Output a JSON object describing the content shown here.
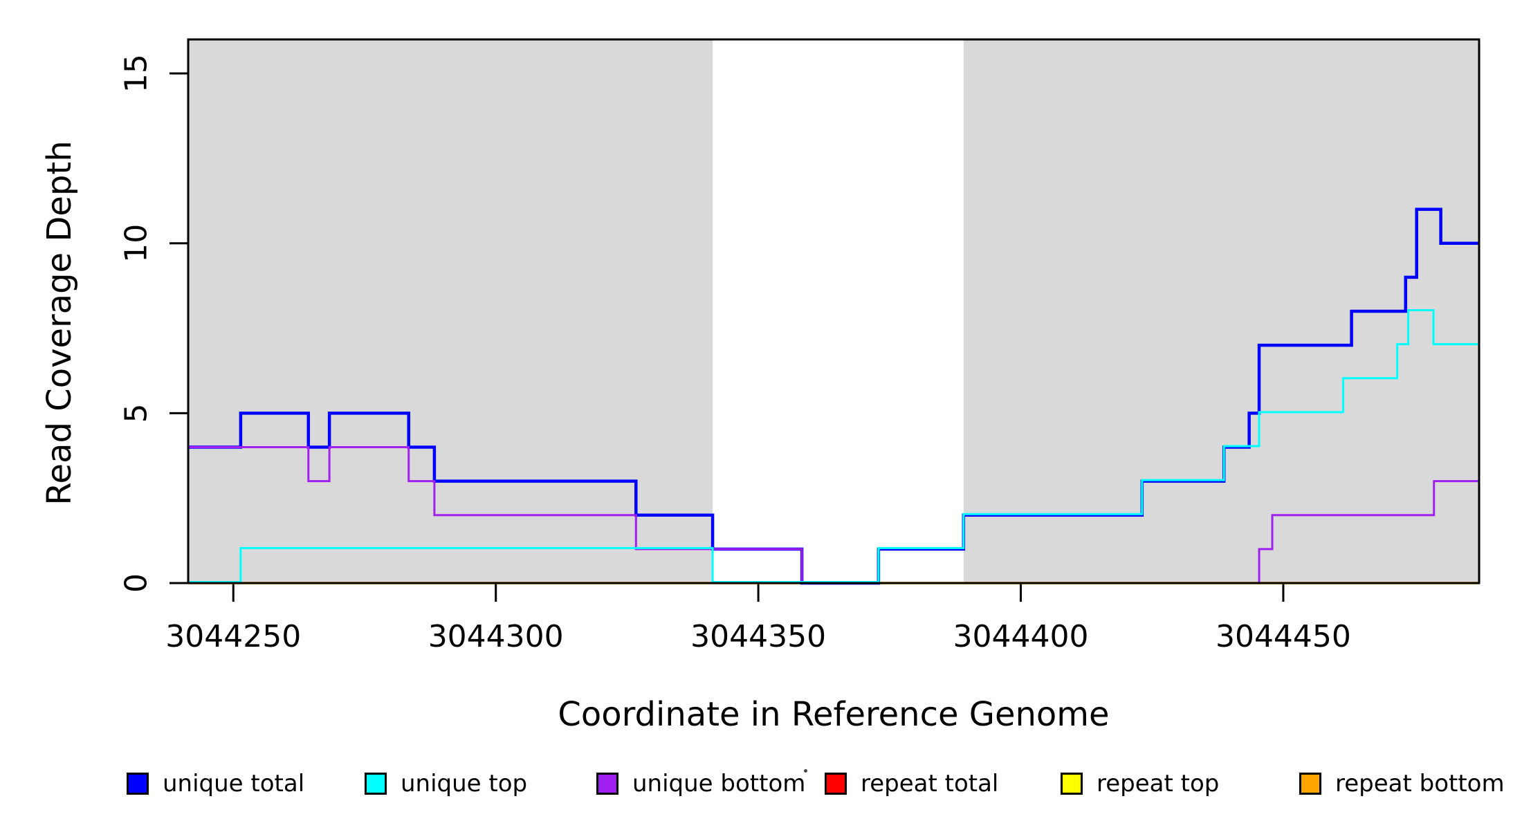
{
  "chart_data": {
    "type": "line",
    "subtype": "step",
    "title": "",
    "xlabel": "Coordinate in Reference Genome",
    "ylabel": "Read Coverage Depth",
    "xlim": [
      3044241.4,
      3044487.3
    ],
    "ylim": [
      0,
      16
    ],
    "grid": false,
    "x_tick_values": [
      3044250,
      3044300,
      3044350,
      3044400,
      3044450
    ],
    "x_tick_labels": [
      "3044250",
      "3044300",
      "3044350",
      "3044400",
      "3044450"
    ],
    "y_tick_values": [
      0,
      5,
      10,
      15
    ],
    "y_tick_labels": [
      "0",
      "5",
      "10",
      "15"
    ],
    "shaded_regions": [
      {
        "x0": 3044241.4,
        "x1": 3044341.3,
        "color": "#d9d9d9"
      },
      {
        "x0": 3044389.1,
        "x1": 3044487.3,
        "color": "#d9d9d9"
      }
    ],
    "series": [
      {
        "name": "repeat total",
        "color": "#ff0000",
        "width": 3,
        "dy": 0,
        "steps": [
          [
            3044241.4,
            0
          ]
        ]
      },
      {
        "name": "repeat top",
        "color": "#ffff00",
        "width": 3,
        "dy": 0,
        "steps": [
          [
            3044241.4,
            0
          ]
        ]
      },
      {
        "name": "repeat bottom",
        "color": "#ffa500",
        "width": 3.5,
        "dy": 0,
        "steps": [
          [
            3044241.4,
            0
          ]
        ]
      },
      {
        "name": "unique total",
        "color": "#0000ff",
        "width": 4.5,
        "dy": 0,
        "steps": [
          [
            3044241.4,
            4
          ],
          [
            3044251.4,
            5
          ],
          [
            3044264.3,
            4
          ],
          [
            3044268.3,
            5
          ],
          [
            3044283.4,
            4
          ],
          [
            3044288.3,
            3
          ],
          [
            3044326.7,
            2
          ],
          [
            3044341.3,
            1
          ],
          [
            3044358.3,
            0
          ],
          [
            3044372.9,
            1
          ],
          [
            3044389.1,
            2
          ],
          [
            3044423.1,
            3
          ],
          [
            3044438.7,
            4
          ],
          [
            3044443.5,
            5
          ],
          [
            3044445.4,
            7
          ],
          [
            3044463.0,
            8
          ],
          [
            3044473.3,
            9
          ],
          [
            3044475.4,
            11
          ],
          [
            3044480.0,
            10
          ]
        ]
      },
      {
        "name": "unique bottom",
        "color": "#a020f0",
        "width": 3,
        "dy": 0,
        "steps": [
          [
            3044241.4,
            4
          ],
          [
            3044264.3,
            3
          ],
          [
            3044268.3,
            4
          ],
          [
            3044283.4,
            3
          ],
          [
            3044288.3,
            2
          ],
          [
            3044326.7,
            1
          ],
          [
            3044358.3,
            0
          ],
          [
            3044445.4,
            1
          ],
          [
            3044447.9,
            2
          ],
          [
            3044478.7,
            3
          ]
        ]
      },
      {
        "name": "unique top",
        "color": "#00ffff",
        "width": 3,
        "dy": -1.5,
        "steps": [
          [
            3044241.4,
            0
          ],
          [
            3044251.4,
            1
          ],
          [
            3044341.3,
            0
          ],
          [
            3044372.9,
            1
          ],
          [
            3044389.1,
            2
          ],
          [
            3044423.1,
            3
          ],
          [
            3044438.7,
            4
          ],
          [
            3044445.4,
            5
          ],
          [
            3044461.4,
            6
          ],
          [
            3044471.7,
            7
          ],
          [
            3044473.8,
            8
          ],
          [
            3044478.6,
            7
          ]
        ]
      }
    ],
    "legend_position": "bottom",
    "legend": [
      {
        "label": "unique total",
        "color": "#0000ff"
      },
      {
        "label": "unique top",
        "color": "#00ffff"
      },
      {
        "label": "unique bottom",
        "color": "#a020f0"
      },
      {
        "label": "repeat total",
        "color": "#ff0000"
      },
      {
        "label": "repeat top",
        "color": "#ffff00"
      },
      {
        "label": "repeat bottom",
        "color": "#ffa500"
      }
    ]
  }
}
